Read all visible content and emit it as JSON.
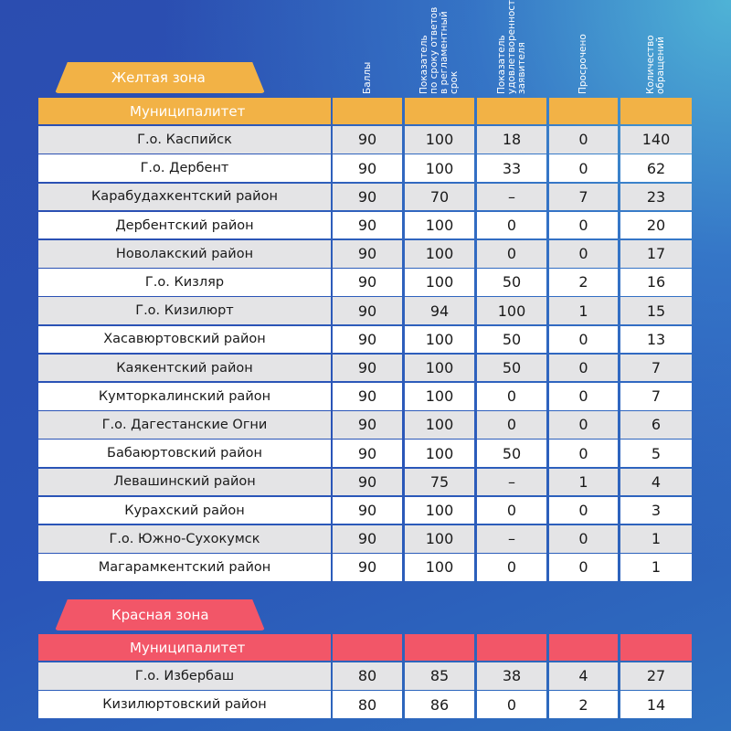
{
  "yellow_zone": {
    "title": "Желтая зона",
    "header": "Муниципалитет",
    "rows": [
      [
        "Г.о. Каспийск",
        90,
        100,
        18,
        0,
        140
      ],
      [
        "Г.о. Дербент",
        90,
        100,
        33,
        0,
        62
      ],
      [
        "Карабудахкентский район",
        90,
        70,
        "–",
        7,
        23
      ],
      [
        "Дербентский район",
        90,
        100,
        0,
        0,
        20
      ],
      [
        "Новолакский район",
        90,
        100,
        0,
        0,
        17
      ],
      [
        "Г.о. Кизляр",
        90,
        100,
        50,
        2,
        16
      ],
      [
        "Г.о. Кизилюрт",
        90,
        94,
        100,
        1,
        15
      ],
      [
        "Хасавюртовский район",
        90,
        100,
        50,
        0,
        13
      ],
      [
        "Каякентский район",
        90,
        100,
        50,
        0,
        7
      ],
      [
        "Кумторкалинский район",
        90,
        100,
        0,
        0,
        7
      ],
      [
        "Г.о. Дагестанские Огни",
        90,
        100,
        0,
        0,
        6
      ],
      [
        "Бабаюртовский район",
        90,
        100,
        50,
        0,
        5
      ],
      [
        "Левашинский район",
        90,
        75,
        "–",
        1,
        4
      ],
      [
        "Курахский район",
        90,
        100,
        0,
        0,
        3
      ],
      [
        "Г.о. Южно-Сухокумск",
        90,
        100,
        "–",
        0,
        1
      ],
      [
        "Магарамкентский район",
        90,
        100,
        0,
        0,
        1
      ]
    ]
  },
  "columns": [
    [
      "Баллы"
    ],
    [
      "Показатель",
      "по сроку ответов",
      "в регламентный",
      "срок"
    ],
    [
      "Показатель",
      "удовлетворенности",
      "заявителя"
    ],
    [
      "Просрочено"
    ],
    [
      "Количество",
      "обращений"
    ]
  ],
  "red_zone": {
    "title": "Красная зона",
    "header": "Муниципалитет",
    "rows": [
      [
        "Г.о. Избербаш",
        80,
        85,
        38,
        4,
        27
      ],
      [
        "Кизилюртовский район",
        80,
        86,
        0,
        2,
        14
      ]
    ]
  }
}
